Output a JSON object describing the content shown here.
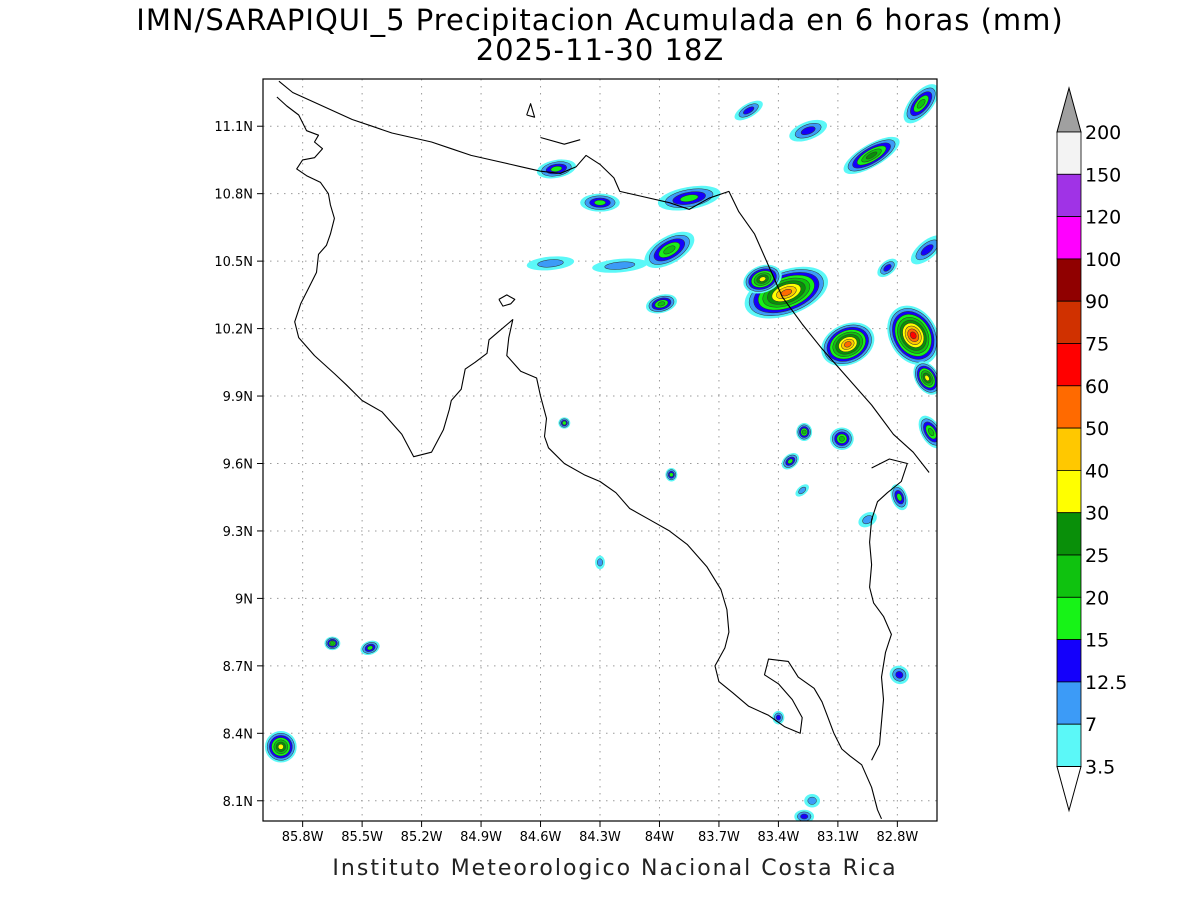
{
  "title": {
    "line1": "IMN/SARAPIQUI_5 Precipitacion Acumulada en 6 horas (mm)",
    "line2": "2025-11-30 18Z"
  },
  "footer": {
    "credit": "Instituto Meteorologico Nacional Costa Rica"
  },
  "map": {
    "lon_range": [
      -86.0,
      -82.6
    ],
    "lat_range": [
      8.01,
      11.31
    ],
    "lon_ticks": [
      {
        "value": -85.8,
        "label": "85.8W"
      },
      {
        "value": -85.5,
        "label": "85.5W"
      },
      {
        "value": -85.2,
        "label": "85.2W"
      },
      {
        "value": -84.9,
        "label": "84.9W"
      },
      {
        "value": -84.6,
        "label": "84.6W"
      },
      {
        "value": -84.3,
        "label": "84.3W"
      },
      {
        "value": -84.0,
        "label": "84W"
      },
      {
        "value": -83.7,
        "label": "83.7W"
      },
      {
        "value": -83.4,
        "label": "83.4W"
      },
      {
        "value": -83.1,
        "label": "83.1W"
      },
      {
        "value": -82.8,
        "label": "82.8W"
      }
    ],
    "lat_ticks": [
      {
        "value": 11.1,
        "label": "11.1N"
      },
      {
        "value": 10.8,
        "label": "10.8N"
      },
      {
        "value": 10.5,
        "label": "10.5N"
      },
      {
        "value": 10.2,
        "label": "10.2N"
      },
      {
        "value": 9.9,
        "label": "9.9N"
      },
      {
        "value": 9.6,
        "label": "9.6N"
      },
      {
        "value": 9.3,
        "label": "9.3N"
      },
      {
        "value": 9.0,
        "label": "9N"
      },
      {
        "value": 8.7,
        "label": "8.7N"
      },
      {
        "value": 8.4,
        "label": "8.4N"
      },
      {
        "value": 8.1,
        "label": "8.1N"
      }
    ],
    "grid": "dotted",
    "coastline": [
      [
        -85.93,
        11.23
      ],
      [
        -85.88,
        11.19
      ],
      [
        -85.82,
        11.15
      ],
      [
        -85.78,
        11.08
      ],
      [
        -85.72,
        11.06
      ],
      [
        -85.74,
        11.03
      ],
      [
        -85.7,
        11.0
      ],
      [
        -85.74,
        10.96
      ],
      [
        -85.8,
        10.95
      ],
      [
        -85.83,
        10.91
      ],
      [
        -85.78,
        10.88
      ],
      [
        -85.71,
        10.85
      ],
      [
        -85.67,
        10.8
      ],
      [
        -85.66,
        10.75
      ],
      [
        -85.64,
        10.69
      ],
      [
        -85.66,
        10.62
      ],
      [
        -85.68,
        10.57
      ],
      [
        -85.72,
        10.53
      ],
      [
        -85.73,
        10.45
      ],
      [
        -85.77,
        10.38
      ],
      [
        -85.81,
        10.31
      ],
      [
        -85.84,
        10.23
      ],
      [
        -85.82,
        10.16
      ],
      [
        -85.74,
        10.08
      ],
      [
        -85.64,
        10.0
      ],
      [
        -85.58,
        9.95
      ],
      [
        -85.5,
        9.88
      ],
      [
        -85.4,
        9.83
      ],
      [
        -85.3,
        9.73
      ],
      [
        -85.24,
        9.63
      ],
      [
        -85.15,
        9.65
      ],
      [
        -85.09,
        9.75
      ],
      [
        -85.06,
        9.84
      ],
      [
        -85.05,
        9.88
      ],
      [
        -85.0,
        9.93
      ],
      [
        -84.98,
        10.02
      ],
      [
        -84.93,
        10.05
      ],
      [
        -84.87,
        10.09
      ],
      [
        -84.86,
        10.15
      ],
      [
        -84.82,
        10.18
      ],
      [
        -84.74,
        10.24
      ],
      [
        -84.76,
        10.16
      ],
      [
        -84.77,
        10.08
      ],
      [
        -84.7,
        10.01
      ],
      [
        -84.62,
        9.98
      ],
      [
        -84.6,
        9.9
      ],
      [
        -84.57,
        9.8
      ],
      [
        -84.58,
        9.72
      ],
      [
        -84.56,
        9.67
      ],
      [
        -84.48,
        9.6
      ],
      [
        -84.38,
        9.55
      ],
      [
        -84.3,
        9.52
      ],
      [
        -84.22,
        9.47
      ],
      [
        -84.15,
        9.4
      ],
      [
        -84.05,
        9.35
      ],
      [
        -83.95,
        9.3
      ],
      [
        -83.86,
        9.24
      ],
      [
        -83.76,
        9.14
      ],
      [
        -83.69,
        9.04
      ],
      [
        -83.66,
        8.95
      ],
      [
        -83.65,
        8.85
      ],
      [
        -83.67,
        8.78
      ],
      [
        -83.72,
        8.7
      ],
      [
        -83.7,
        8.63
      ],
      [
        -83.63,
        8.58
      ],
      [
        -83.55,
        8.52
      ],
      [
        -83.45,
        8.48
      ],
      [
        -83.37,
        8.43
      ],
      [
        -83.29,
        8.4
      ],
      [
        -83.28,
        8.47
      ],
      [
        -83.33,
        8.55
      ],
      [
        -83.4,
        8.62
      ],
      [
        -83.47,
        8.66
      ],
      [
        -83.45,
        8.73
      ],
      [
        -83.35,
        8.72
      ],
      [
        -83.3,
        8.65
      ],
      [
        -83.22,
        8.6
      ],
      [
        -83.18,
        8.54
      ],
      [
        -83.15,
        8.47
      ],
      [
        -83.12,
        8.4
      ],
      [
        -83.08,
        8.33
      ],
      [
        -83.04,
        8.3
      ],
      [
        -82.98,
        8.26
      ],
      [
        -82.93,
        8.16
      ],
      [
        -82.9,
        8.06
      ],
      [
        -82.88,
        8.02
      ]
    ],
    "border": [
      [
        -85.92,
        11.3
      ],
      [
        -85.85,
        11.25
      ],
      [
        -85.75,
        11.21
      ],
      [
        -85.65,
        11.17
      ],
      [
        -85.55,
        11.13
      ],
      [
        -85.45,
        11.1
      ],
      [
        -85.35,
        11.07
      ],
      [
        -85.25,
        11.05
      ],
      [
        -85.15,
        11.03
      ],
      [
        -85.05,
        11.0
      ],
      [
        -84.95,
        10.97
      ],
      [
        -84.85,
        10.95
      ],
      [
        -84.75,
        10.93
      ],
      [
        -84.7,
        10.92
      ],
      [
        -84.6,
        10.9
      ],
      [
        -84.5,
        10.89
      ],
      [
        -84.42,
        10.92
      ],
      [
        -84.37,
        10.97
      ],
      [
        -84.3,
        10.93
      ],
      [
        -84.23,
        10.87
      ],
      [
        -84.2,
        10.81
      ],
      [
        -84.1,
        10.79
      ],
      [
        -83.95,
        10.76
      ],
      [
        -83.85,
        10.73
      ],
      [
        -83.75,
        10.78
      ],
      [
        -83.65,
        10.81
      ],
      [
        -83.6,
        10.72
      ],
      [
        -83.52,
        10.62
      ],
      [
        -83.45,
        10.48
      ],
      [
        -83.38,
        10.34
      ],
      [
        -83.28,
        10.22
      ],
      [
        -83.18,
        10.11
      ],
      [
        -83.05,
        9.98
      ],
      [
        -82.93,
        9.86
      ],
      [
        -82.82,
        9.73
      ],
      [
        -82.72,
        9.65
      ],
      [
        -82.64,
        9.56
      ]
    ],
    "panama_border": [
      [
        -82.93,
        9.58
      ],
      [
        -82.84,
        9.62
      ],
      [
        -82.75,
        9.6
      ],
      [
        -82.78,
        9.52
      ],
      [
        -82.85,
        9.47
      ],
      [
        -82.9,
        9.43
      ],
      [
        -82.93,
        9.35
      ],
      [
        -82.94,
        9.25
      ],
      [
        -82.93,
        9.15
      ],
      [
        -82.94,
        9.05
      ],
      [
        -82.92,
        8.98
      ],
      [
        -82.87,
        8.92
      ],
      [
        -82.83,
        8.84
      ],
      [
        -82.86,
        8.76
      ],
      [
        -82.88,
        8.65
      ],
      [
        -82.87,
        8.55
      ],
      [
        -82.88,
        8.45
      ],
      [
        -82.89,
        8.35
      ],
      [
        -82.93,
        8.28
      ]
    ],
    "lake": [
      [
        -84.81,
        10.33
      ],
      [
        -84.79,
        10.3
      ],
      [
        -84.75,
        10.31
      ],
      [
        -84.73,
        10.33
      ],
      [
        -84.77,
        10.35
      ],
      [
        -84.81,
        10.33
      ]
    ],
    "north_coast": [
      [
        -84.6,
        11.05
      ],
      [
        -84.48,
        11.02
      ],
      [
        -84.4,
        11.04
      ]
    ],
    "sw_islet": [
      [
        -84.67,
        11.15
      ],
      [
        -84.63,
        11.14
      ],
      [
        -84.65,
        11.2
      ],
      [
        -84.67,
        11.15
      ]
    ]
  },
  "colorbar": {
    "levels": [
      {
        "label": "3.5",
        "color": "#5bf8f8"
      },
      {
        "label": "7",
        "color": "#3c9bf7"
      },
      {
        "label": "12.5",
        "color": "#1400fb"
      },
      {
        "label": "15",
        "color": "#17f317"
      },
      {
        "label": "20",
        "color": "#0fc20f"
      },
      {
        "label": "25",
        "color": "#098f09"
      },
      {
        "label": "30",
        "color": "#ffff00"
      },
      {
        "label": "40",
        "color": "#ffc800"
      },
      {
        "label": "50",
        "color": "#ff6a00"
      },
      {
        "label": "60",
        "color": "#ff0000"
      },
      {
        "label": "75",
        "color": "#d03100"
      },
      {
        "label": "90",
        "color": "#900000"
      },
      {
        "label": "100",
        "color": "#ff00ff"
      },
      {
        "label": "120",
        "color": "#a033e6"
      },
      {
        "label": "150",
        "color": "#f3f3f3"
      },
      {
        "label": "200",
        "color": "#a0a0a0"
      }
    ],
    "under_color": "#ffffff",
    "over_color": "#a0a0a0"
  },
  "precip_cells": [
    {
      "lon": -83.05,
      "lat": 10.13,
      "rx": 0.14,
      "ry": 0.09,
      "rot": -25,
      "level": 8
    },
    {
      "lon": -82.72,
      "lat": 10.17,
      "rx": 0.12,
      "ry": 0.14,
      "rot": -30,
      "level": 9
    },
    {
      "lon": -83.36,
      "lat": 10.36,
      "rx": 0.22,
      "ry": 0.1,
      "rot": -20,
      "level": 8
    },
    {
      "lon": -82.65,
      "lat": 9.98,
      "rx": 0.06,
      "ry": 0.08,
      "rot": -30,
      "level": 6
    },
    {
      "lon": -83.48,
      "lat": 10.42,
      "rx": 0.1,
      "ry": 0.06,
      "rot": -20,
      "level": 6
    },
    {
      "lon": -82.93,
      "lat": 10.97,
      "rx": 0.16,
      "ry": 0.05,
      "rot": -30,
      "level": 5
    },
    {
      "lon": -82.68,
      "lat": 11.2,
      "rx": 0.12,
      "ry": 0.05,
      "rot": -50,
      "level": 4
    },
    {
      "lon": -83.95,
      "lat": 10.55,
      "rx": 0.14,
      "ry": 0.06,
      "rot": -30,
      "level": 4
    },
    {
      "lon": -83.99,
      "lat": 10.31,
      "rx": 0.08,
      "ry": 0.04,
      "rot": -15,
      "level": 4
    },
    {
      "lon": -83.85,
      "lat": 10.78,
      "rx": 0.16,
      "ry": 0.05,
      "rot": -10,
      "level": 3
    },
    {
      "lon": -84.3,
      "lat": 10.76,
      "rx": 0.1,
      "ry": 0.04,
      "rot": 0,
      "level": 3
    },
    {
      "lon": -84.52,
      "lat": 10.91,
      "rx": 0.1,
      "ry": 0.04,
      "rot": -10,
      "level": 3
    },
    {
      "lon": -83.25,
      "lat": 11.08,
      "rx": 0.1,
      "ry": 0.04,
      "rot": -20,
      "level": 2
    },
    {
      "lon": -83.55,
      "lat": 11.17,
      "rx": 0.08,
      "ry": 0.03,
      "rot": -30,
      "level": 2
    },
    {
      "lon": -83.08,
      "lat": 9.71,
      "rx": 0.06,
      "ry": 0.05,
      "rot": 0,
      "level": 4
    },
    {
      "lon": -83.27,
      "lat": 9.74,
      "rx": 0.04,
      "ry": 0.04,
      "rot": 0,
      "level": 4
    },
    {
      "lon": -83.34,
      "lat": 9.61,
      "rx": 0.05,
      "ry": 0.03,
      "rot": -40,
      "level": 3
    },
    {
      "lon": -82.79,
      "lat": 9.45,
      "rx": 0.04,
      "ry": 0.06,
      "rot": -20,
      "level": 3
    },
    {
      "lon": -82.79,
      "lat": 8.66,
      "rx": 0.05,
      "ry": 0.04,
      "rot": 30,
      "level": 2
    },
    {
      "lon": -85.91,
      "lat": 8.34,
      "rx": 0.08,
      "ry": 0.07,
      "rot": 0,
      "level": 6
    },
    {
      "lon": -85.65,
      "lat": 8.8,
      "rx": 0.04,
      "ry": 0.03,
      "rot": 0,
      "level": 4
    },
    {
      "lon": -85.46,
      "lat": 8.78,
      "rx": 0.05,
      "ry": 0.03,
      "rot": -20,
      "level": 3
    },
    {
      "lon": -84.48,
      "lat": 9.78,
      "rx": 0.03,
      "ry": 0.025,
      "rot": 0,
      "level": 3
    },
    {
      "lon": -83.94,
      "lat": 9.55,
      "rx": 0.03,
      "ry": 0.03,
      "rot": 0,
      "level": 3
    },
    {
      "lon": -83.4,
      "lat": 8.47,
      "rx": 0.03,
      "ry": 0.03,
      "rot": 0,
      "level": 2
    },
    {
      "lon": -84.3,
      "lat": 9.16,
      "rx": 0.025,
      "ry": 0.03,
      "rot": 0,
      "level": 1
    },
    {
      "lon": -83.27,
      "lat": 8.03,
      "rx": 0.05,
      "ry": 0.03,
      "rot": 0,
      "level": 2
    },
    {
      "lon": -82.63,
      "lat": 9.74,
      "rx": 0.05,
      "ry": 0.08,
      "rot": -30,
      "level": 4
    },
    {
      "lon": -84.55,
      "lat": 10.49,
      "rx": 0.12,
      "ry": 0.03,
      "rot": -5,
      "level": 1
    },
    {
      "lon": -84.2,
      "lat": 10.48,
      "rx": 0.14,
      "ry": 0.03,
      "rot": -5,
      "level": 1
    },
    {
      "lon": -82.65,
      "lat": 10.55,
      "rx": 0.1,
      "ry": 0.04,
      "rot": -40,
      "level": 2
    },
    {
      "lon": -82.85,
      "lat": 10.47,
      "rx": 0.06,
      "ry": 0.03,
      "rot": -40,
      "level": 2
    },
    {
      "lon": -83.28,
      "lat": 9.48,
      "rx": 0.04,
      "ry": 0.02,
      "rot": -40,
      "level": 1
    },
    {
      "lon": -82.95,
      "lat": 9.35,
      "rx": 0.05,
      "ry": 0.03,
      "rot": -30,
      "level": 1
    },
    {
      "lon": -83.23,
      "lat": 8.1,
      "rx": 0.04,
      "ry": 0.03,
      "rot": 0,
      "level": 1
    }
  ]
}
